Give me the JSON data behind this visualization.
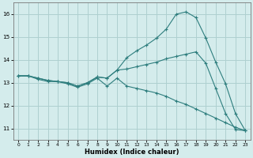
{
  "xlabel": "Humidex (Indice chaleur)",
  "bg_color": "#d4ecec",
  "grid_color": "#aed0d0",
  "line_color": "#2d7d7d",
  "xlim": [
    -0.5,
    23.5
  ],
  "ylim": [
    10.5,
    16.5
  ],
  "xticks": [
    0,
    1,
    2,
    3,
    4,
    5,
    6,
    7,
    8,
    9,
    10,
    11,
    12,
    13,
    14,
    15,
    16,
    17,
    18,
    19,
    20,
    21,
    22,
    23
  ],
  "yticks": [
    11,
    12,
    13,
    14,
    15,
    16
  ],
  "line_top_x": [
    0,
    1,
    2,
    3,
    4,
    5,
    6,
    7,
    8,
    9,
    10,
    11,
    12,
    13,
    14,
    15,
    16,
    17,
    18,
    19,
    20,
    21,
    22,
    23
  ],
  "line_top_y": [
    13.3,
    13.3,
    13.2,
    13.1,
    13.05,
    13.0,
    12.85,
    13.0,
    13.25,
    13.2,
    13.55,
    14.1,
    14.4,
    14.65,
    14.95,
    15.35,
    16.0,
    16.1,
    15.85,
    14.95,
    13.9,
    12.95,
    11.65,
    10.9
  ],
  "line_mid_x": [
    0,
    1,
    2,
    3,
    4,
    5,
    6,
    7,
    8,
    9,
    10,
    11,
    12,
    13,
    14,
    15,
    16,
    17,
    18,
    19,
    20,
    21,
    22,
    23
  ],
  "line_mid_y": [
    13.3,
    13.3,
    13.2,
    13.1,
    13.05,
    13.0,
    12.85,
    13.0,
    13.25,
    13.2,
    13.55,
    13.6,
    13.7,
    13.8,
    13.9,
    14.05,
    14.15,
    14.25,
    14.35,
    13.85,
    12.75,
    11.65,
    10.95,
    10.9
  ],
  "line_bot_x": [
    0,
    1,
    2,
    3,
    4,
    5,
    6,
    7,
    8,
    9,
    10,
    11,
    12,
    13,
    14,
    15,
    16,
    17,
    18,
    19,
    20,
    21,
    22,
    23
  ],
  "line_bot_y": [
    13.3,
    13.3,
    13.15,
    13.05,
    13.05,
    12.95,
    12.8,
    12.95,
    13.2,
    12.85,
    13.2,
    12.85,
    12.75,
    12.65,
    12.55,
    12.4,
    12.2,
    12.05,
    11.85,
    11.65,
    11.45,
    11.25,
    11.05,
    10.9
  ]
}
